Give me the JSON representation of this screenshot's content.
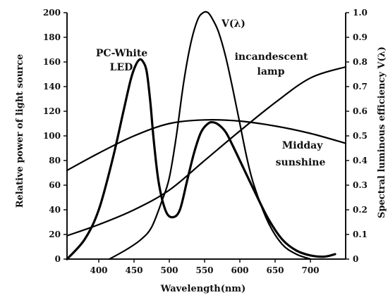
{
  "chart_data": {
    "type": "line",
    "xlabel": "Wavelength(nm)",
    "ylabel": "Relative power of light source",
    "y2label": "Spectral luminous efficiency V(λ)",
    "xlim": [
      355,
      750
    ],
    "ylim": [
      0,
      200
    ],
    "y2lim": [
      0,
      1.0
    ],
    "x_ticks": [
      400,
      450,
      500,
      550,
      600,
      650,
      700
    ],
    "y_ticks": [
      0,
      20,
      40,
      60,
      80,
      100,
      120,
      140,
      160,
      180,
      200
    ],
    "y2_ticks": [
      "0",
      "0.1",
      "0.2",
      "0.3",
      "0.4",
      "0.5",
      "0.6",
      "0.7",
      "0.8",
      "0.9",
      "1.0"
    ],
    "grid": false,
    "legend": "none",
    "series": [
      {
        "name": "PC-White LED",
        "axis": "left",
        "stroke_width": 3.2,
        "x": [
          355,
          380,
          400,
          420,
          435,
          445,
          452,
          458,
          463,
          468,
          473,
          478,
          485,
          495,
          505,
          515,
          525,
          535,
          545,
          555,
          562,
          570,
          580,
          590,
          600,
          620,
          640,
          660,
          680,
          700,
          720,
          735
        ],
        "y": [
          0,
          16,
          40,
          82,
          120,
          145,
          157,
          162,
          160,
          152,
          128,
          96,
          62,
          39,
          34,
          40,
          63,
          86,
          103,
          110,
          111,
          109,
          103,
          92,
          80,
          56,
          33,
          16,
          7,
          3,
          2,
          4
        ]
      },
      {
        "name": "V(λ)",
        "axis": "right",
        "stroke_width": 2.2,
        "x": [
          415,
          440,
          460,
          475,
          490,
          500,
          510,
          520,
          530,
          540,
          548,
          555,
          562,
          570,
          580,
          590,
          600,
          610,
          620,
          640,
          660,
          680,
          700
        ],
        "y": [
          0,
          0.04,
          0.08,
          0.13,
          0.24,
          0.33,
          0.5,
          0.71,
          0.87,
          0.97,
          1.0,
          1.0,
          0.97,
          0.92,
          0.82,
          0.69,
          0.55,
          0.41,
          0.3,
          0.15,
          0.06,
          0.02,
          0
        ]
      },
      {
        "name": "incandescent lamp",
        "axis": "left",
        "stroke_width": 2.2,
        "x": [
          355,
          400,
          450,
          500,
          550,
          600,
          650,
          700,
          750
        ],
        "y": [
          19,
          28,
          40,
          56,
          80,
          104,
          127,
          147,
          156
        ]
      },
      {
        "name": "Midday sunshine",
        "axis": "left",
        "stroke_width": 2.2,
        "x": [
          355,
          400,
          450,
          500,
          550,
          600,
          650,
          700,
          750
        ],
        "y": [
          72,
          86,
          100,
          110,
          113,
          112,
          108,
          102,
          94
        ]
      }
    ],
    "annotations": [
      {
        "lines": [
          "PC-White",
          "LED"
        ]
      },
      {
        "lines": [
          "V(λ)"
        ]
      },
      {
        "lines": [
          "incandescent",
          "lamp"
        ]
      },
      {
        "lines": [
          "Midday",
          "sunshine"
        ]
      }
    ]
  }
}
